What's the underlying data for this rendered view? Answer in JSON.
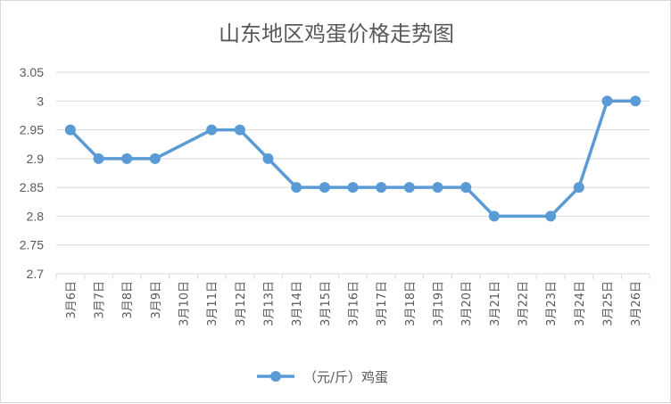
{
  "chart_data": {
    "type": "line",
    "title": "山东地区鸡蛋价格走势图",
    "categories": [
      "3月6日",
      "3月7日",
      "3月8日",
      "3月9日",
      "3月10日",
      "3月11日",
      "3月12日",
      "3月13日",
      "3月14日",
      "3月15日",
      "3月16日",
      "3月17日",
      "3月18日",
      "3月19日",
      "3月20日",
      "3月21日",
      "3月22日",
      "3月23日",
      "3月24日",
      "3月25日",
      "3月26日"
    ],
    "yticks": [
      "2.7",
      "2.75",
      "2.8",
      "2.85",
      "2.9",
      "2.95",
      "3",
      "3.05"
    ],
    "ylim": [
      2.7,
      3.05
    ],
    "series": [
      {
        "name": "（元/斤）鸡蛋",
        "color": "#5b9bd5",
        "values": [
          2.95,
          2.9,
          2.9,
          2.9,
          null,
          2.95,
          2.95,
          2.9,
          2.85,
          2.85,
          2.85,
          2.85,
          2.85,
          2.85,
          2.85,
          2.8,
          null,
          2.8,
          2.85,
          3.0,
          3.0
        ]
      }
    ],
    "grid": true,
    "legend": "bottom"
  }
}
